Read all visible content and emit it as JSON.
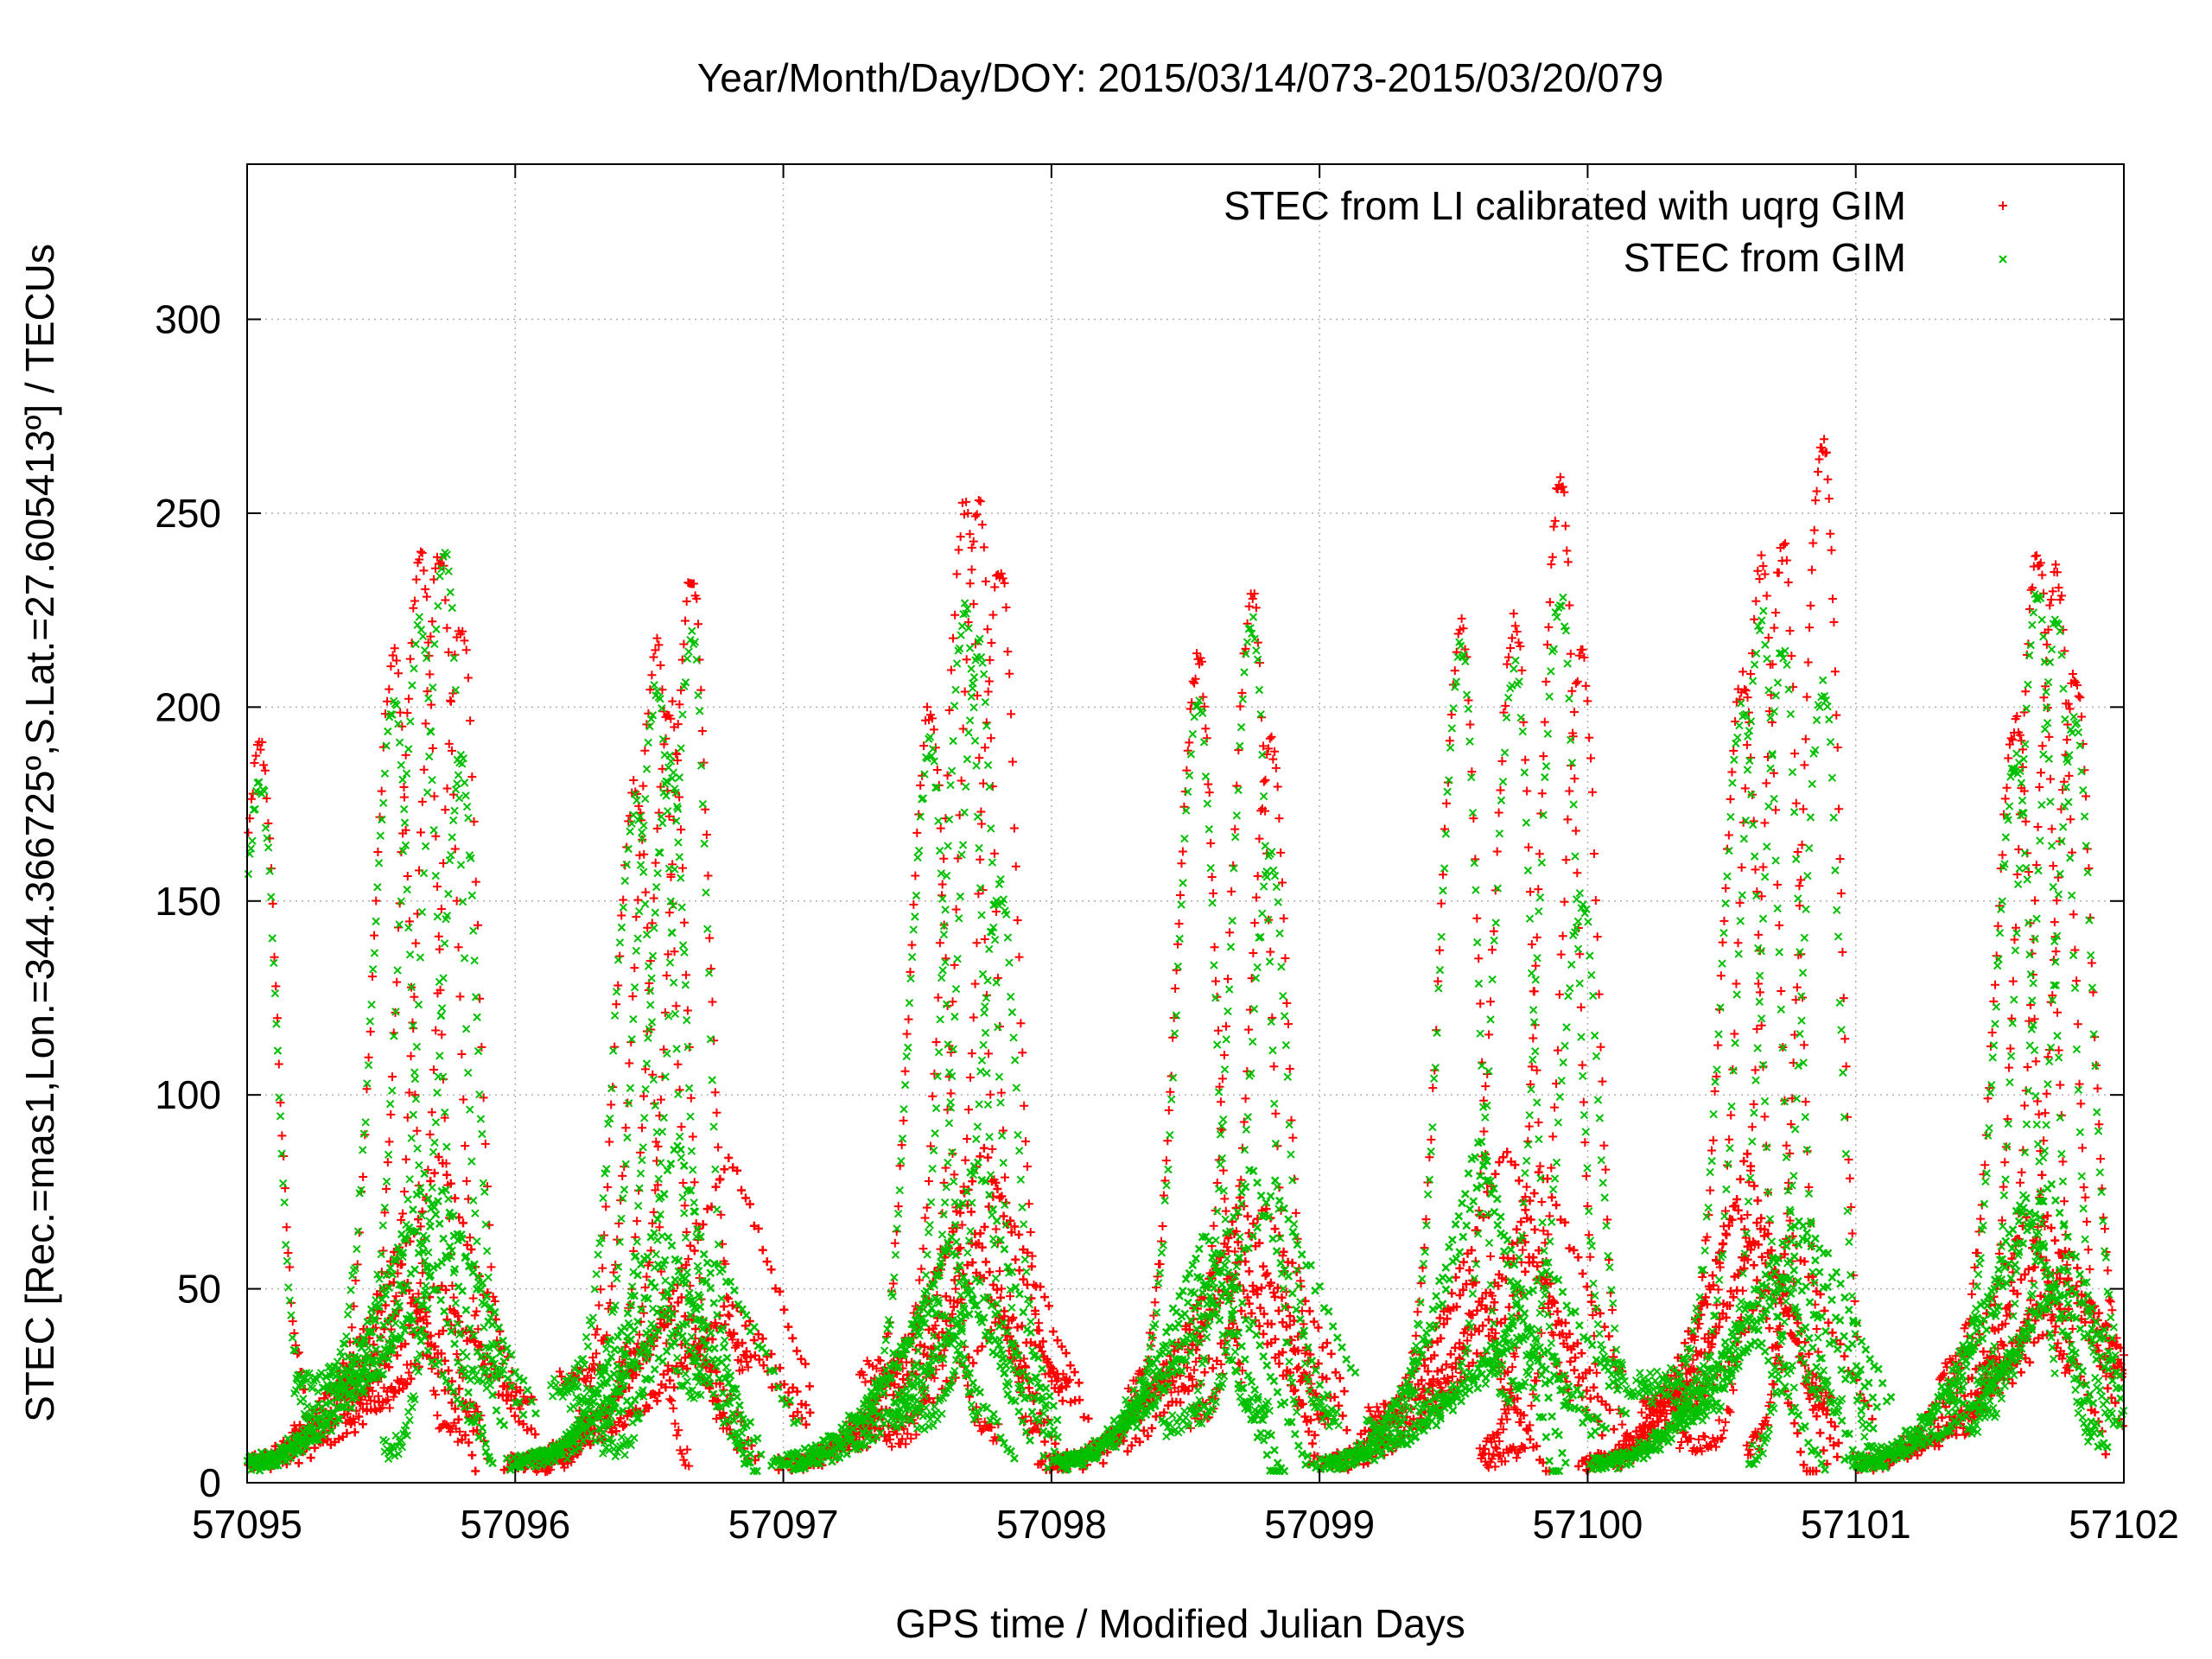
{
  "chart_data": {
    "type": "scatter",
    "title": "Year/Month/Day/DOY: 2015/03/14/073-2015/03/20/079",
    "xlabel": "GPS time / Modified Julian Days",
    "ylabel": "STEC [Rec.=mas1,Lon.=344.366725º,S.Lat.=27.605413º] / TECUs",
    "xlim": [
      57095,
      57102
    ],
    "ylim": [
      0,
      340
    ],
    "xticks": [
      57095,
      57096,
      57097,
      57098,
      57099,
      57100,
      57101,
      57102
    ],
    "yticks": [
      0,
      50,
      100,
      150,
      200,
      250,
      300
    ],
    "grid": true,
    "legend_position": "top-right",
    "series": [
      {
        "name": "STEC from LI calibrated with uqrg GIM",
        "color": "#ff0000",
        "marker": "+",
        "daily_peaks": [
          {
            "day": 57095,
            "peaks": [
              [
                57095.05,
                190
              ],
              [
                57095.55,
                213
              ],
              [
                57095.65,
                239
              ],
              [
                57095.72,
                239
              ],
              [
                57095.8,
                222
              ]
            ]
          },
          {
            "day": 57096,
            "peaks": [
              [
                57096.45,
                180
              ],
              [
                57096.53,
                215
              ],
              [
                57096.58,
                200
              ],
              [
                57096.66,
                233
              ]
            ]
          },
          {
            "day": 57097,
            "peaks": [
              [
                57097.55,
                200
              ],
              [
                57097.68,
                253
              ],
              [
                57097.73,
                252
              ],
              [
                57097.81,
                236
              ]
            ]
          },
          {
            "day": 57098,
            "peaks": [
              [
                57098.55,
                212
              ],
              [
                57098.75,
                228
              ],
              [
                57098.82,
                190
              ]
            ]
          },
          {
            "day": 57099,
            "peaks": [
              [
                57099.53,
                220
              ],
              [
                57099.73,
                223
              ],
              [
                57099.9,
                259
              ],
              [
                57099.98,
                213
              ]
            ]
          },
          {
            "day": 57100,
            "peaks": [
              [
                57100.58,
                207
              ],
              [
                57100.65,
                237
              ],
              [
                57100.73,
                241
              ],
              [
                57100.88,
                269
              ]
            ]
          },
          {
            "day": 57101,
            "peaks": [
              [
                57101.6,
                197
              ],
              [
                57101.68,
                239
              ],
              [
                57101.75,
                235
              ],
              [
                57101.82,
                208
              ]
            ]
          }
        ],
        "nighttime_minimum_range": [
          5,
          30
        ]
      },
      {
        "name": "STEC from GIM",
        "color": "#00c000",
        "marker": "x",
        "daily_peaks": [
          {
            "day": 57095,
            "peaks": [
              [
                57095.05,
                180
              ],
              [
                57095.55,
                200
              ],
              [
                57095.65,
                222
              ],
              [
                57095.74,
                240
              ],
              [
                57095.8,
                185
              ]
            ]
          },
          {
            "day": 57096,
            "peaks": [
              [
                57096.45,
                175
              ],
              [
                57096.53,
                205
              ],
              [
                57096.58,
                185
              ],
              [
                57096.66,
                218
              ]
            ]
          },
          {
            "day": 57097,
            "peaks": [
              [
                57097.55,
                190
              ],
              [
                57097.68,
                225
              ],
              [
                57097.73,
                215
              ],
              [
                57097.81,
                153
              ]
            ]
          },
          {
            "day": 57098,
            "peaks": [
              [
                57098.55,
                200
              ],
              [
                57098.75,
                222
              ],
              [
                57098.82,
                160
              ]
            ]
          },
          {
            "day": 57099,
            "peaks": [
              [
                57099.53,
                215
              ],
              [
                57099.73,
                210
              ],
              [
                57099.9,
                228
              ],
              [
                57099.98,
                150
              ]
            ]
          },
          {
            "day": 57100,
            "peaks": [
              [
                57100.58,
                200
              ],
              [
                57100.65,
                223
              ],
              [
                57100.73,
                215
              ],
              [
                57100.88,
                206
              ]
            ]
          },
          {
            "day": 57101,
            "peaks": [
              [
                57101.6,
                186
              ],
              [
                57101.68,
                229
              ],
              [
                57101.75,
                222
              ],
              [
                57101.82,
                197
              ]
            ]
          }
        ],
        "nighttime_minimum_range": [
          5,
          28
        ]
      }
    ]
  }
}
